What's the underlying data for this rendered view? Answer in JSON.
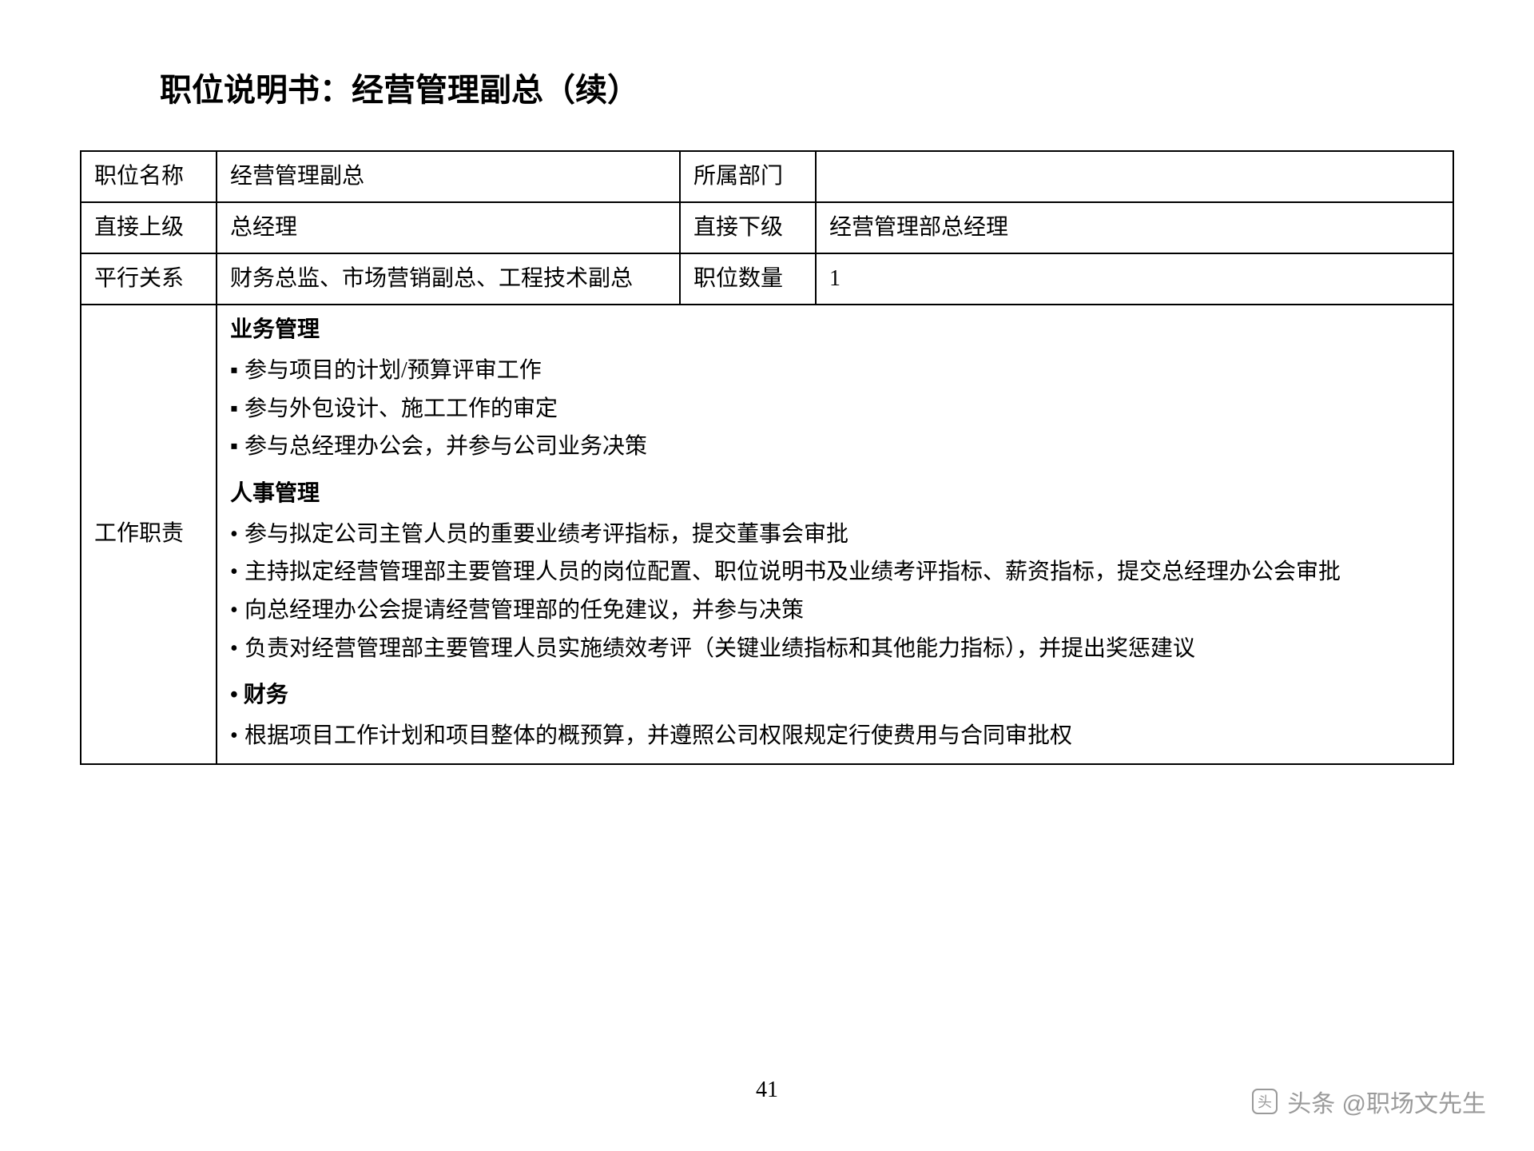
{
  "title": "职位说明书：经营管理副总（续）",
  "page_number": "41",
  "watermark": "头条 @职场文先生",
  "table": {
    "row1": {
      "c1": "职位名称",
      "c2": "经营管理副总",
      "c3": "所属部门",
      "c4": ""
    },
    "row2": {
      "c1": "直接上级",
      "c2": "总经理",
      "c3": "直接下级",
      "c4": "经营管理部总经理"
    },
    "row3": {
      "c1": "平行关系",
      "c2": "财务总监、市场营销副总、工程技术副总",
      "c3": "职位数量",
      "c4": "1"
    },
    "duties_label": "工作职责"
  },
  "duties": {
    "sections": [
      {
        "heading": "业务管理",
        "bullet": "▪",
        "items": [
          "参与项目的计划/预算评审工作",
          "参与外包设计、施工工作的审定",
          "参与总经理办公会，并参与公司业务决策"
        ]
      },
      {
        "heading": "人事管理",
        "bullet": "•",
        "items": [
          "参与拟定公司主管人员的重要业绩考评指标，提交董事会审批",
          "主持拟定经营管理部主要管理人员的岗位配置、职位说明书及业绩考评指标、薪资指标，提交总经理办公会审批",
          "向总经理办公会提请经营管理部的任免建议，并参与决策",
          "负责对经营管理部主要管理人员实施绩效考评（关键业绩指标和其他能力指标），并提出奖惩建议"
        ]
      },
      {
        "heading": "• 财务",
        "bullet": "•",
        "items": [
          "根据项目工作计划和项目整体的概预算，并遵照公司权限规定行使费用与合同审批权"
        ]
      }
    ]
  },
  "style": {
    "font_size_title": 40,
    "font_size_body": 28,
    "border_color": "#000000",
    "text_color": "#000000",
    "background": "#ffffff",
    "watermark_color": "#9a9a9a"
  }
}
